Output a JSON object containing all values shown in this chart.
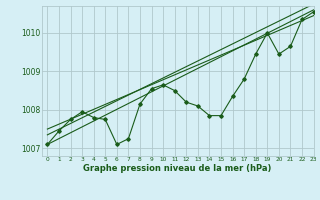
{
  "title": "Graphe pression niveau de la mer (hPa)",
  "bg_color": "#d6eff5",
  "grid_color": "#b0c8cc",
  "line_color": "#1a5c1a",
  "text_color": "#1a5c1a",
  "xlim": [
    -0.5,
    23
  ],
  "ylim": [
    1006.8,
    1010.7
  ],
  "yticks": [
    1007,
    1008,
    1009,
    1010
  ],
  "xticks": [
    0,
    1,
    2,
    3,
    4,
    5,
    6,
    7,
    8,
    9,
    10,
    11,
    12,
    13,
    14,
    15,
    16,
    17,
    18,
    19,
    20,
    21,
    22,
    23
  ],
  "main_line_x": [
    0,
    1,
    2,
    3,
    4,
    5,
    6,
    7,
    8,
    9,
    10,
    11,
    12,
    13,
    14,
    15,
    16,
    17,
    18,
    19,
    20,
    21,
    22,
    23
  ],
  "main_line_y": [
    1007.1,
    1007.45,
    1007.75,
    1007.95,
    1007.8,
    1007.75,
    1007.1,
    1007.25,
    1008.15,
    1008.55,
    1008.65,
    1008.5,
    1008.2,
    1008.1,
    1007.85,
    1007.85,
    1008.35,
    1008.8,
    1009.45,
    1010.0,
    1009.45,
    1009.65,
    1010.35,
    1010.55
  ],
  "line1_x": [
    0,
    23
  ],
  "line1_y": [
    1007.1,
    1010.6
  ],
  "line2_x": [
    0,
    23
  ],
  "line2_y": [
    1007.35,
    1010.75
  ],
  "line3_x": [
    0,
    23
  ],
  "line3_y": [
    1007.5,
    1010.45
  ],
  "xlabel_fontsize": 6.0,
  "ytick_fontsize": 5.5,
  "xtick_fontsize": 4.2
}
